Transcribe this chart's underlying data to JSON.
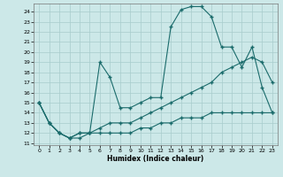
{
  "xlabel": "Humidex (Indice chaleur)",
  "bg_color": "#cce8e8",
  "grid_color": "#a8cccc",
  "line_color": "#1a6b6b",
  "xlim": [
    -0.5,
    23.5
  ],
  "ylim": [
    10.8,
    24.8
  ],
  "xticks": [
    0,
    1,
    2,
    3,
    4,
    5,
    6,
    7,
    8,
    9,
    10,
    11,
    12,
    13,
    14,
    15,
    16,
    17,
    18,
    19,
    20,
    21,
    22,
    23
  ],
  "yticks": [
    11,
    12,
    13,
    14,
    15,
    16,
    17,
    18,
    19,
    20,
    21,
    22,
    23,
    24
  ],
  "line1_x": [
    0,
    1,
    2,
    3,
    4,
    5,
    6,
    7,
    8,
    9,
    10,
    11,
    12,
    13,
    14,
    15,
    16,
    17,
    18,
    19,
    20,
    21,
    22,
    23
  ],
  "line1_y": [
    15,
    13,
    12,
    11.5,
    12,
    12,
    19,
    17.5,
    14.5,
    14.5,
    15,
    15.5,
    15.5,
    22.5,
    24.2,
    24.5,
    24.5,
    23.5,
    20.5,
    20.5,
    18.5,
    20.5,
    16.5,
    14
  ],
  "line2_x": [
    0,
    1,
    2,
    3,
    4,
    5,
    6,
    7,
    8,
    9,
    10,
    11,
    12,
    13,
    14,
    15,
    16,
    17,
    18,
    19,
    20,
    21,
    22,
    23
  ],
  "line2_y": [
    15,
    13,
    12,
    11.5,
    12,
    12,
    12.5,
    13,
    13,
    13,
    13.5,
    14,
    14.5,
    15,
    15.5,
    16,
    16.5,
    17,
    18,
    18.5,
    19,
    19.5,
    19,
    17
  ],
  "line3_x": [
    0,
    1,
    2,
    3,
    4,
    5,
    6,
    7,
    8,
    9,
    10,
    11,
    12,
    13,
    14,
    15,
    16,
    17,
    18,
    19,
    20,
    21,
    22,
    23
  ],
  "line3_y": [
    15,
    13,
    12,
    11.5,
    11.5,
    12,
    12,
    12,
    12,
    12,
    12.5,
    12.5,
    13,
    13,
    13.5,
    13.5,
    13.5,
    14,
    14,
    14,
    14,
    14,
    14,
    14
  ]
}
